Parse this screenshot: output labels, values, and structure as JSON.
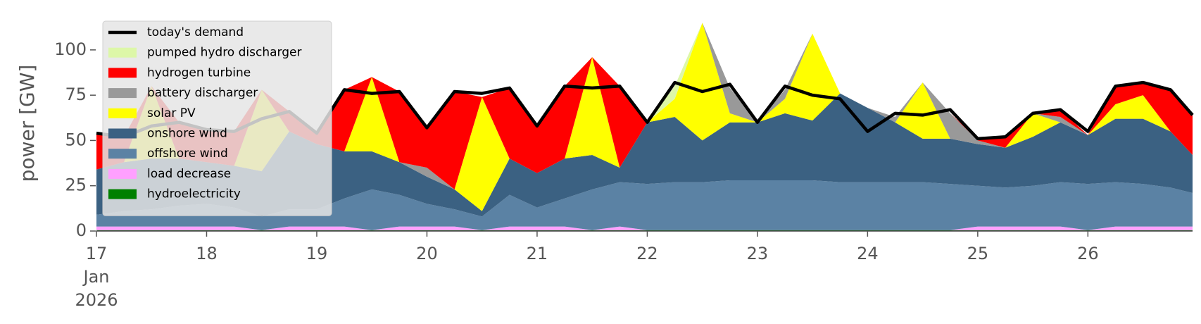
{
  "chart_data": {
    "type": "stacked-area",
    "y_label": "power [GW]",
    "x": [
      17,
      17.25,
      17.5,
      17.75,
      18,
      18.25,
      18.5,
      18.75,
      19,
      19.25,
      19.5,
      19.75,
      20,
      20.25,
      20.5,
      20.75,
      21,
      21.25,
      21.5,
      21.75,
      22,
      22.25,
      22.5,
      22.75,
      23,
      23.25,
      23.5,
      23.75,
      24,
      24.25,
      24.5,
      24.75,
      25,
      25.25,
      25.5,
      25.75,
      26,
      26.25,
      26.5,
      26.75,
      26.95
    ],
    "xlim": [
      17,
      26.95
    ],
    "xticks": [
      17,
      18,
      19,
      20,
      21,
      22,
      23,
      24,
      25,
      26
    ],
    "x_date_label": [
      "Jan",
      "2026"
    ],
    "ylim": [
      0,
      119
    ],
    "yticks": [
      0,
      25,
      50,
      75,
      100
    ],
    "legend": "upper left",
    "demand": {
      "name": "today's demand",
      "color": "#000000",
      "values": [
        54,
        52,
        58,
        60,
        56,
        55,
        62,
        66,
        54,
        78,
        76,
        77,
        57,
        77,
        76,
        79,
        58,
        80,
        79,
        80,
        60,
        82,
        77,
        81,
        60,
        80,
        75,
        73,
        55,
        65,
        64,
        67,
        51,
        52,
        65,
        67,
        55,
        80,
        82,
        78,
        64
      ]
    },
    "series": [
      {
        "name": "pumped hydro discharger",
        "color": "#ddf7a8",
        "values": [
          0,
          0,
          0,
          0,
          0,
          0,
          0,
          0,
          0,
          0,
          0,
          0,
          0,
          0,
          0,
          0,
          0,
          0,
          0,
          0,
          0,
          7,
          0,
          0,
          0,
          0,
          0,
          0,
          0,
          0,
          0,
          0,
          0,
          0,
          0,
          0,
          0,
          0,
          0,
          0,
          0
        ]
      },
      {
        "name": "hydrogen turbine",
        "color": "#ff0000",
        "values": [
          20,
          14,
          0,
          20,
          18,
          19,
          0,
          11,
          6,
          34,
          0,
          39,
          22,
          54,
          0,
          39,
          26,
          40,
          0,
          45,
          0,
          0,
          0,
          0,
          0,
          0,
          0,
          0,
          0,
          0,
          0,
          0,
          1,
          6,
          0,
          4,
          0,
          10,
          7,
          23,
          22
        ]
      },
      {
        "name": "battery discharger",
        "color": "#999999",
        "values": [
          0,
          0,
          0,
          0,
          0,
          0,
          0,
          0,
          0,
          0,
          0,
          0,
          5,
          0,
          0,
          0,
          0,
          0,
          0,
          0,
          0,
          0,
          0,
          14,
          0,
          5,
          0,
          0,
          0,
          3,
          0,
          14,
          2,
          0,
          0,
          3,
          0,
          0,
          0,
          0,
          0
        ]
      },
      {
        "name": "solar PV",
        "color": "#ffff00",
        "values": [
          0,
          0,
          40,
          0,
          0,
          0,
          45,
          0,
          0,
          0,
          41,
          0,
          0,
          0,
          63,
          0,
          0,
          0,
          54,
          0,
          0,
          10,
          65,
          5,
          0,
          8,
          48,
          0,
          0,
          0,
          31,
          0,
          0,
          0,
          13,
          0,
          0,
          8,
          13,
          0,
          0
        ]
      },
      {
        "name": "onshore wind",
        "color": "#3b6182",
        "values": [
          25,
          27,
          28,
          26,
          23,
          23,
          25,
          43,
          36,
          26,
          21,
          18,
          15,
          11,
          3,
          20,
          19,
          22,
          19,
          8,
          34,
          36,
          23,
          32,
          32,
          37,
          33,
          49,
          41,
          33,
          24,
          25,
          23,
          22,
          27,
          33,
          27,
          35,
          36,
          31,
          21
        ]
      },
      {
        "name": "offshore wind",
        "color": "#5b82a4",
        "values": [
          6.5,
          8.5,
          9.5,
          11.5,
          12.5,
          10.5,
          7.5,
          9.5,
          9.5,
          15.5,
          22.5,
          17.5,
          12.5,
          9.5,
          7.5,
          17.5,
          10.5,
          15.5,
          22.5,
          24.5,
          25.5,
          26.5,
          26.5,
          27.5,
          27.5,
          27.5,
          27.5,
          26.5,
          26.5,
          26.5,
          26.5,
          25.5,
          22.5,
          21.5,
          22.5,
          24.5,
          25.5,
          24.5,
          23.5,
          21.5,
          18.5
        ]
      },
      {
        "name": "load decrease",
        "color": "#ffa0ff",
        "values": [
          2,
          2,
          2,
          2,
          2,
          2,
          0,
          2,
          2,
          2,
          0,
          2,
          2,
          2,
          0,
          2,
          2,
          2,
          0,
          2,
          0,
          0,
          0,
          0,
          0,
          0,
          0,
          0,
          0,
          0,
          0,
          0,
          2,
          2,
          2,
          2,
          0,
          2,
          2,
          2,
          2
        ]
      },
      {
        "name": "hydroelectricity",
        "color": "#008000",
        "values": [
          0.5,
          0.5,
          0.5,
          0.5,
          0.5,
          0.5,
          0.5,
          0.5,
          0.5,
          0.5,
          0.5,
          0.5,
          0.5,
          0.5,
          0.5,
          0.5,
          0.5,
          0.5,
          0.5,
          0.5,
          0.5,
          0.5,
          0.5,
          0.5,
          0.5,
          0.5,
          0.5,
          0.5,
          0.5,
          0.5,
          0.5,
          0.5,
          0.5,
          0.5,
          0.5,
          0.5,
          0.5,
          0.5,
          0.5,
          0.5,
          0.5
        ]
      }
    ]
  }
}
